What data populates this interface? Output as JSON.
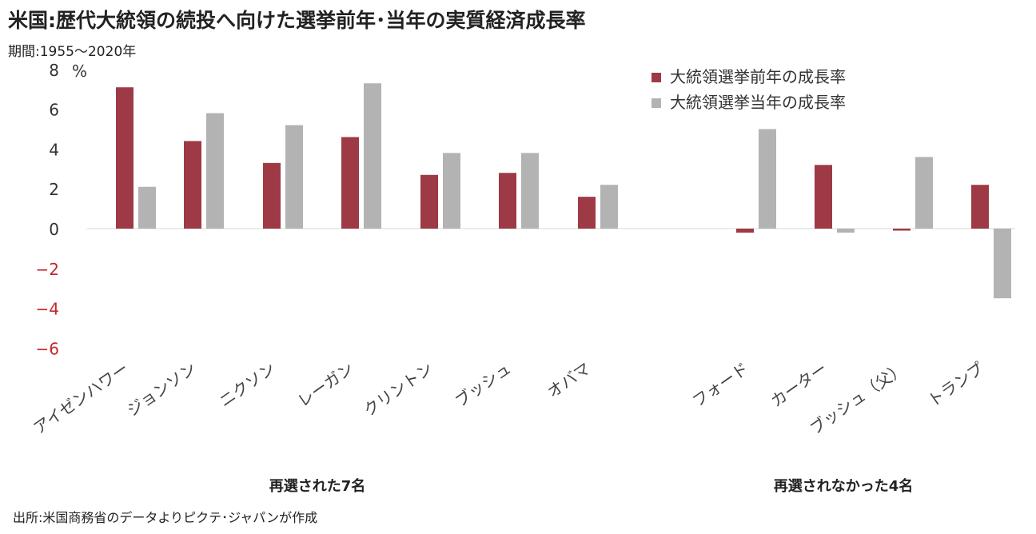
{
  "title": "米国:歴代大統領の続投へ向けた選挙前年･当年の実質経済成長率",
  "period": "期間:1955～2020年",
  "source": "出所:米国商務省のデータよりピクテ･ジャパンが作成",
  "group_labels": {
    "reelected": "再選された7名",
    "not_reelected": "再選されなかった4名"
  },
  "colors": {
    "prev_year": "#9e3a45",
    "election_year": "#b3b3b3",
    "negative_tick": "#c0282d",
    "axis": "#d9d9d9"
  },
  "chart_data": {
    "type": "bar",
    "title": "米国:歴代大統領の続投へ向けた選挙前年･当年の実質経済成長率",
    "ylabel": "%",
    "ylim": [
      -6,
      8
    ],
    "yticks": [
      8,
      6,
      4,
      2,
      0,
      -2,
      -4,
      -6
    ],
    "ytick_labels": [
      "8",
      "6",
      "4",
      "2",
      "0",
      "−2",
      "−4",
      "−6"
    ],
    "legend_position": "top-right",
    "grid": false,
    "categories": [
      "アイゼンハワー",
      "ジョンソン",
      "ニクソン",
      "レーガン",
      "クリントン",
      "ブッシュ",
      "オバマ",
      "フォード",
      "カーター",
      "ブッシュ（父）",
      "トランプ"
    ],
    "series": [
      {
        "name": "大統領選挙前年の成長率",
        "values": [
          7.1,
          4.4,
          3.3,
          4.6,
          2.7,
          2.8,
          1.6,
          -0.2,
          3.2,
          -0.1,
          2.2
        ]
      },
      {
        "name": "大統領選挙当年の成長率",
        "values": [
          2.1,
          5.8,
          5.2,
          7.3,
          3.8,
          3.8,
          2.2,
          5.0,
          -0.2,
          3.6,
          -3.5
        ]
      }
    ]
  }
}
